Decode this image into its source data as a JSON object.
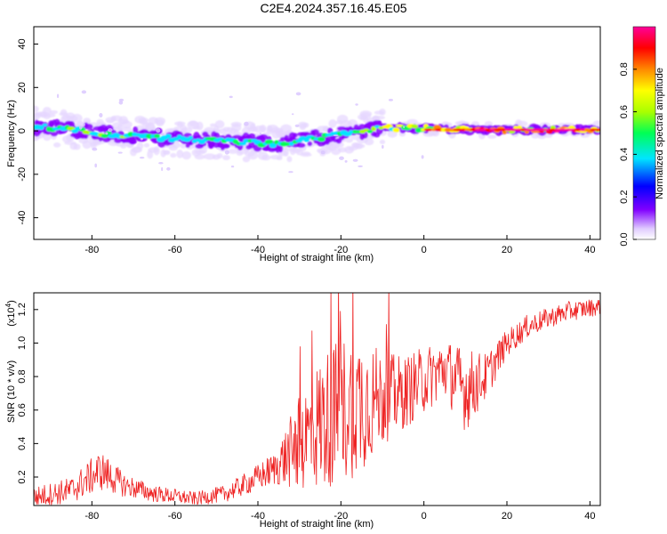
{
  "figure": {
    "title": "C2E4.2024.357.16.45.E05"
  },
  "chart_data": [
    {
      "type": "heatmap",
      "xlabel": "Height of straight line (km)",
      "ylabel": "Frequency (Hz)",
      "xlim": [
        -94,
        42.5
      ],
      "ylim": [
        -50,
        48
      ],
      "xticks": [
        -80,
        -60,
        -40,
        -20,
        0,
        20,
        40
      ],
      "yticks": [
        -40,
        -20,
        0,
        20,
        40
      ],
      "colorbar": {
        "label": "Normalized spectral amplitude",
        "range": [
          0,
          1
        ],
        "ticks": [
          0.0,
          0.2,
          0.4,
          0.6,
          0.8
        ],
        "colormap": [
          "#ffffff",
          "#e0ccff",
          "#8000ff",
          "#0000ff",
          "#00e5ff",
          "#00ff55",
          "#aaff00",
          "#ffff00",
          "#ff8800",
          "#ff0000",
          "#ff0099"
        ]
      },
      "ridge": [
        {
          "x": -93,
          "f": 2,
          "amp": 0.45
        },
        {
          "x": -85,
          "f": 1,
          "amp": 0.5
        },
        {
          "x": -75,
          "f": -2,
          "amp": 0.5
        },
        {
          "x": -65,
          "f": -3,
          "amp": 0.45
        },
        {
          "x": -55,
          "f": -4,
          "amp": 0.45
        },
        {
          "x": -45,
          "f": -5,
          "amp": 0.45
        },
        {
          "x": -35,
          "f": -6,
          "amp": 0.45
        },
        {
          "x": -25,
          "f": -3,
          "amp": 0.45
        },
        {
          "x": -18,
          "f": -1,
          "amp": 0.5
        },
        {
          "x": -12,
          "f": 1,
          "amp": 0.6
        },
        {
          "x": -5,
          "f": 1.5,
          "amp": 0.7
        },
        {
          "x": 5,
          "f": 1,
          "amp": 0.75
        },
        {
          "x": 15,
          "f": 0.5,
          "amp": 0.9
        },
        {
          "x": 25,
          "f": 0.5,
          "amp": 0.9
        },
        {
          "x": 42,
          "f": 0.5,
          "amp": 0.85
        }
      ]
    },
    {
      "type": "line",
      "xlabel": "Height of straight line (km)",
      "ylabel": "SNR (10 * v/v)",
      "yscale_label": "(x10",
      "yscale_exp": "4",
      "xlim": [
        -94,
        42.5
      ],
      "ylim": [
        0.03,
        1.3
      ],
      "xticks": [
        -80,
        -60,
        -40,
        -20,
        0,
        20,
        40
      ],
      "yticks": [
        0.2,
        0.4,
        0.6,
        0.8,
        1.0,
        1.2
      ],
      "ytick_labels": [
        "0.2",
        "0.4",
        "0.6",
        "0.8",
        "1.0",
        "1.2"
      ],
      "color": "#ee2222",
      "envelope": [
        [
          -94,
          0.08,
          0.06
        ],
        [
          -85,
          0.12,
          0.08
        ],
        [
          -78,
          0.24,
          0.12
        ],
        [
          -72,
          0.15,
          0.07
        ],
        [
          -65,
          0.1,
          0.05
        ],
        [
          -55,
          0.07,
          0.04
        ],
        [
          -48,
          0.1,
          0.05
        ],
        [
          -42,
          0.17,
          0.07
        ],
        [
          -36,
          0.25,
          0.1
        ],
        [
          -30,
          0.4,
          0.28
        ],
        [
          -25,
          0.52,
          0.4
        ],
        [
          -20,
          0.6,
          0.45
        ],
        [
          -15,
          0.65,
          0.42
        ],
        [
          -10,
          0.67,
          0.28
        ],
        [
          -5,
          0.7,
          0.22
        ],
        [
          0,
          0.78,
          0.2
        ],
        [
          5,
          0.85,
          0.18
        ],
        [
          10,
          0.72,
          0.25
        ],
        [
          15,
          0.8,
          0.14
        ],
        [
          20,
          1.0,
          0.08
        ],
        [
          25,
          1.1,
          0.07
        ],
        [
          30,
          1.15,
          0.06
        ],
        [
          35,
          1.19,
          0.06
        ],
        [
          42.5,
          1.22,
          0.05
        ]
      ]
    }
  ]
}
